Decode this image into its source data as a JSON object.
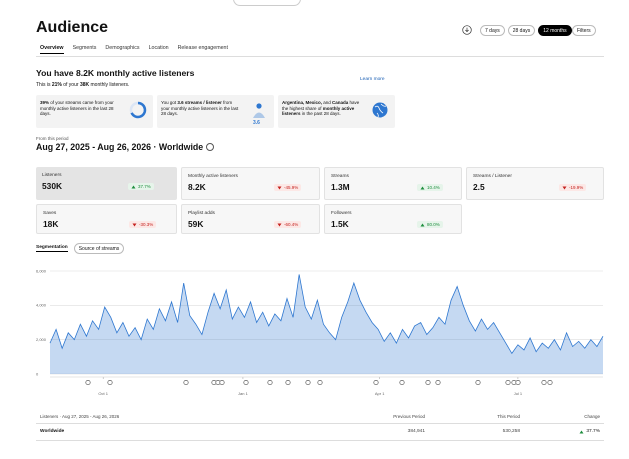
{
  "header": {
    "title": "Audience",
    "ranges": [
      "7 days",
      "28 days",
      "12 months"
    ],
    "active_range": 2,
    "filters": "Filters"
  },
  "tabs": {
    "items": [
      "Overview",
      "Segments",
      "Demographics",
      "Location",
      "Release engagement"
    ],
    "active": 0
  },
  "summary": {
    "title": "You have 8.2K monthly active listeners",
    "subtitle": [
      {
        "text": "This is ",
        "bold": false
      },
      {
        "text": "21%",
        "bold": true
      },
      {
        "text": " of your ",
        "bold": false
      },
      {
        "text": "38K",
        "bold": true
      },
      {
        "text": " monthly listeners.",
        "bold": false
      }
    ],
    "link": "Learn more"
  },
  "cards": [
    {
      "parts": [
        {
          "text": "39%",
          "bold": true
        },
        {
          "text": " of your streams came from your monthly active listeners in the last 28 days.",
          "bold": false
        }
      ]
    },
    {
      "parts": [
        {
          "text": "You got ",
          "bold": false
        },
        {
          "text": "3.6 streams / listener",
          "bold": true
        },
        {
          "text": " from your monthly active listeners in the last 28 days.",
          "bold": false
        }
      ],
      "icon_label": "3.6"
    },
    {
      "parts": [
        {
          "text": "Argentina, Mexico,",
          "bold": true
        },
        {
          "text": " and ",
          "bold": false
        },
        {
          "text": "Canada",
          "bold": true
        },
        {
          "text": " have the highest share of ",
          "bold": false
        },
        {
          "text": "monthly active listeners",
          "bold": true
        },
        {
          "text": " in the past 28 days.",
          "bold": false
        }
      ]
    }
  ],
  "period": {
    "label": "From this period",
    "title": "Aug 27, 2025 - Aug 26, 2026 · Worldwide"
  },
  "metrics": [
    {
      "label": "Listeners",
      "value": "530K",
      "change": "37.7%",
      "trend": "up",
      "selected": true
    },
    {
      "label": "Monthly active listeners",
      "value": "8.2K",
      "change": "-45.9%",
      "trend": "down",
      "selected": false
    },
    {
      "label": "Streams",
      "value": "1.3M",
      "change": "10.4%",
      "trend": "up",
      "selected": false
    },
    {
      "label": "Streams / Listener",
      "value": "2.5",
      "change": "-19.9%",
      "trend": "down",
      "selected": false
    },
    {
      "label": "Saves",
      "value": "18K",
      "change": "-30.3%",
      "trend": "down",
      "selected": false
    },
    {
      "label": "Playlist adds",
      "value": "59K",
      "change": "-60.4%",
      "trend": "down",
      "selected": false
    },
    {
      "label": "Followers",
      "value": "1.5K",
      "change": "80.0%",
      "trend": "up",
      "selected": false
    }
  ],
  "chart_tabs": {
    "items": [
      "Segmentation",
      "Source of streams"
    ],
    "active": 0
  },
  "chart_data": {
    "type": "area",
    "color": "#2e77d0",
    "grid": true,
    "x": [
      0,
      4,
      8,
      12,
      16,
      20,
      24,
      28,
      32,
      36,
      40,
      44,
      48,
      52,
      56,
      60,
      64,
      68,
      72,
      76,
      80,
      84,
      88,
      92,
      96,
      100,
      104,
      108,
      112,
      116,
      120,
      124,
      128,
      132,
      136,
      140,
      144,
      148,
      152,
      156,
      160,
      164,
      168,
      172,
      176,
      180,
      184,
      188,
      192,
      196,
      200,
      204,
      208,
      212,
      216,
      220,
      224,
      228,
      232,
      236,
      240,
      244,
      248,
      252,
      256,
      260,
      264,
      268,
      272,
      276,
      280,
      284,
      288,
      292,
      296,
      300,
      304,
      308,
      312,
      316,
      320,
      324,
      328,
      332,
      336,
      340,
      344,
      348,
      352,
      356,
      360,
      364
    ],
    "values": [
      1800,
      2600,
      1500,
      2400,
      2000,
      2900,
      2200,
      3100,
      2600,
      3900,
      3300,
      2400,
      3000,
      2200,
      2700,
      2000,
      3200,
      2600,
      3800,
      3100,
      4200,
      3000,
      5300,
      3400,
      2900,
      2300,
      3600,
      4700,
      3800,
      4900,
      3200,
      3900,
      3300,
      4200,
      3000,
      3600,
      2800,
      3500,
      3100,
      4400,
      3300,
      5800,
      3900,
      3200,
      4300,
      2900,
      2400,
      2000,
      3300,
      4200,
      5300,
      4300,
      3600,
      3000,
      2600,
      1900,
      2400,
      1800,
      2600,
      2100,
      2800,
      3000,
      2300,
      2700,
      3300,
      2900,
      4300,
      5100,
      4000,
      3100,
      2500,
      3200,
      2600,
      3000,
      2400,
      1800,
      1200,
      1700,
      1400,
      2100,
      1300,
      1800,
      1500,
      2000,
      1400,
      2400,
      1600,
      1900,
      1500,
      2000,
      1600,
      2200
    ],
    "xlim": [
      0,
      364
    ],
    "xticks": [
      {
        "value": 35,
        "label": "Oct 1"
      },
      {
        "value": 127,
        "label": "Jan 1"
      },
      {
        "value": 217,
        "label": "Apr 1"
      },
      {
        "value": 308,
        "label": "Jul 1"
      }
    ],
    "ylim": [
      0,
      6000
    ],
    "yticks": [
      {
        "value": 0,
        "label": "0"
      },
      {
        "value": 2000,
        "label": "2,000"
      },
      {
        "value": 4000,
        "label": "4,000"
      },
      {
        "value": 6000,
        "label": "6,000"
      }
    ]
  },
  "table": {
    "columns": [
      "Listeners · Aug 27, 2025 - Aug 26, 2026",
      "Previous Period",
      "This Period",
      "Change"
    ],
    "rows": [
      {
        "name": "Worldwide",
        "previous": "384,941",
        "current": "530,258",
        "change": "37.7%",
        "trend": "up"
      }
    ]
  }
}
